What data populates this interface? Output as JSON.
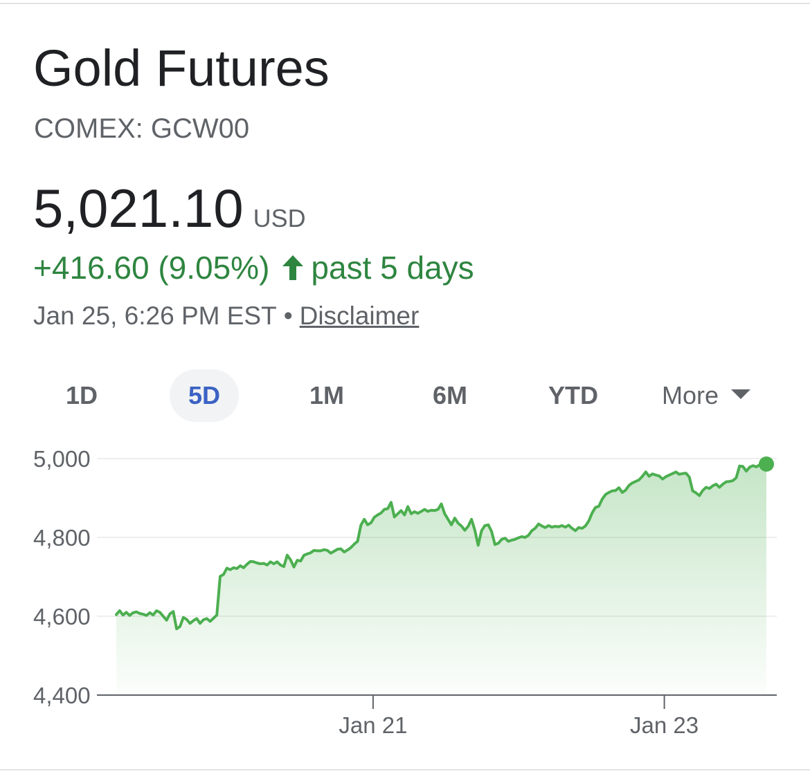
{
  "header": {
    "title": "Gold Futures",
    "ticker": "COMEX: GCW00"
  },
  "quote": {
    "price": "5,021.10",
    "currency": "USD",
    "change": "+416.60 (9.05%)",
    "period": "past 5 days",
    "timestamp": "Jan 25, 6:26 PM EST",
    "separator": "•",
    "disclaimer": "Disclaimer"
  },
  "tabs": [
    {
      "label": "1D",
      "active": false
    },
    {
      "label": "5D",
      "active": true
    },
    {
      "label": "1M",
      "active": false
    },
    {
      "label": "6M",
      "active": false
    },
    {
      "label": "YTD",
      "active": false
    },
    {
      "label": "More",
      "active": false
    }
  ],
  "colors": {
    "line": "#4caf50",
    "fill": "#4caf50",
    "up": "#2e8540",
    "activeTab": "#3c63c4"
  },
  "chart_data": {
    "type": "area",
    "title": "",
    "xlabel": "",
    "ylabel": "",
    "ylim": [
      4400,
      5000
    ],
    "yticks": [
      5000,
      4800,
      4600,
      4400
    ],
    "ytick_labels": [
      "5,000",
      "4,800",
      "4,600",
      "4,400"
    ],
    "xticks": [
      {
        "label": "Jan 21",
        "t": 0.395
      },
      {
        "label": "Jan 23",
        "t": 0.843
      }
    ],
    "grid": true,
    "values": [
      4604,
      4614,
      4603,
      4610,
      4602,
      4609,
      4611,
      4607,
      4605,
      4602,
      4609,
      4603,
      4614,
      4610,
      4600,
      4590,
      4606,
      4612,
      4568,
      4574,
      4597,
      4592,
      4582,
      4589,
      4594,
      4582,
      4591,
      4594,
      4587,
      4595,
      4603,
      4701,
      4706,
      4722,
      4718,
      4723,
      4721,
      4728,
      4723,
      4732,
      4739,
      4738,
      4735,
      4733,
      4734,
      4730,
      4738,
      4733,
      4738,
      4730,
      4726,
      4755,
      4743,
      4725,
      4742,
      4740,
      4755,
      4758,
      4761,
      4767,
      4766,
      4766,
      4769,
      4767,
      4760,
      4765,
      4770,
      4771,
      4763,
      4768,
      4774,
      4783,
      4790,
      4831,
      4846,
      4832,
      4837,
      4851,
      4857,
      4862,
      4871,
      4873,
      4889,
      4852,
      4860,
      4868,
      4857,
      4878,
      4860,
      4865,
      4861,
      4866,
      4871,
      4866,
      4869,
      4868,
      4871,
      4885,
      4860,
      4846,
      4832,
      4849,
      4836,
      4829,
      4818,
      4828,
      4846,
      4818,
      4780,
      4817,
      4830,
      4832,
      4815,
      4782,
      4785,
      4795,
      4798,
      4790,
      4793,
      4795,
      4799,
      4802,
      4800,
      4805,
      4817,
      4823,
      4834,
      4829,
      4825,
      4830,
      4826,
      4828,
      4827,
      4830,
      4826,
      4831,
      4823,
      4817,
      4825,
      4823,
      4829,
      4842,
      4862,
      4876,
      4879,
      4897,
      4909,
      4914,
      4918,
      4919,
      4926,
      4914,
      4920,
      4932,
      4938,
      4942,
      4946,
      4955,
      4966,
      4955,
      4961,
      4958,
      4956,
      4948,
      4954,
      4958,
      4962,
      4966,
      4960,
      4962,
      4963,
      4953,
      4918,
      4913,
      4906,
      4919,
      4927,
      4924,
      4931,
      4935,
      4927,
      4935,
      4941,
      4942,
      4944,
      4951,
      4981,
      4980,
      4968,
      4978,
      4982,
      4979,
      4984,
      4987,
      4986
    ]
  }
}
